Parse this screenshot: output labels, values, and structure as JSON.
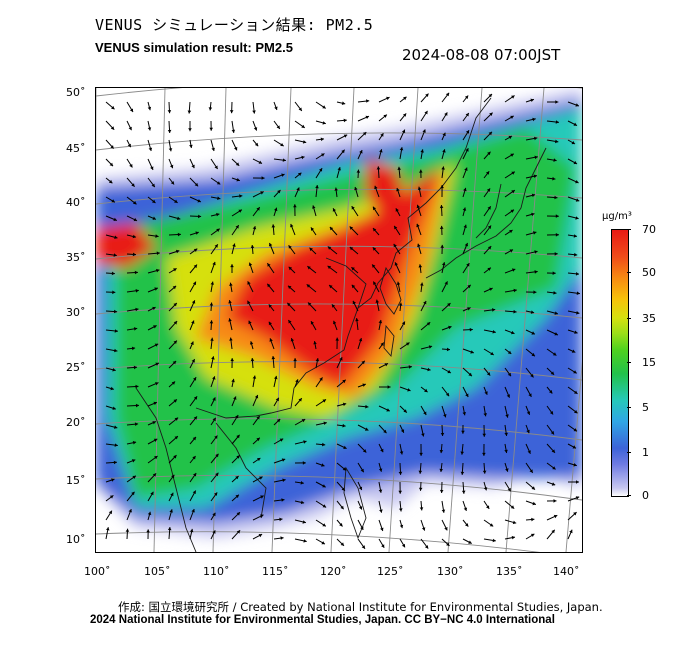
{
  "header": {
    "title_jp": "VENUS シミュレーション結果: PM2.5",
    "title_en": "VENUS simulation result: PM2.5",
    "datetime": "2024-08-08 07:00JST"
  },
  "map": {
    "lat_labels": [
      "50˚",
      "45˚",
      "40˚",
      "35˚",
      "30˚",
      "25˚",
      "20˚",
      "15˚",
      "10˚"
    ],
    "lon_labels": [
      "100˚",
      "105˚",
      "110˚",
      "115˚",
      "120˚",
      "125˚",
      "130˚",
      "135˚",
      "140˚"
    ],
    "lat_range": [
      10,
      50
    ],
    "lon_range": [
      100,
      140
    ],
    "variable": "PM2.5",
    "colors": {
      "very_high": "#e81a14",
      "high": "#f78a12",
      "moderate": "#d6e00f",
      "mid": "#22c24a",
      "low": "#26c9b9",
      "lower": "#3d63d8",
      "lowest": "#c7c7f0"
    }
  },
  "legend": {
    "unit": "μg/m³",
    "ticks": [
      "70",
      "50",
      "35",
      "15",
      "5",
      "1",
      "0"
    ]
  },
  "footer": {
    "line1": "作成: 国立環境研究所 / Created by National Institute for Environmental Studies, Japan.",
    "line2": "2024 National Institute for Environmental Studies, Japan. CC BY−NC 4.0 International"
  }
}
